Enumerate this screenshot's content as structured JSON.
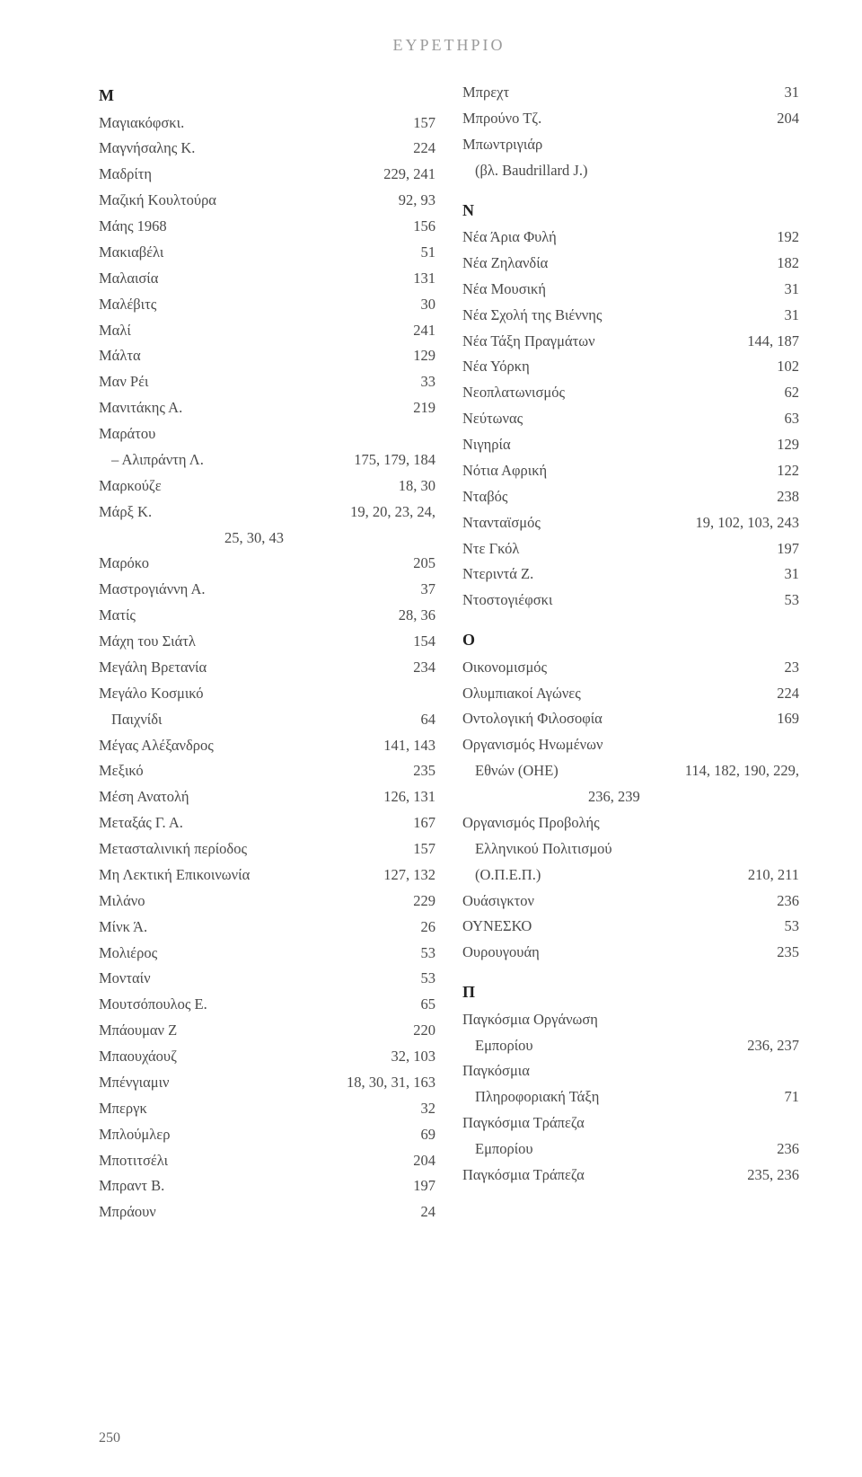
{
  "header": "ΕΥΡΕΤΗΡΙΟ",
  "page_number": "250",
  "left": {
    "letter": "Μ",
    "entries": [
      {
        "t": "Μαγιακόφσκι.",
        "p": "157"
      },
      {
        "t": "Μαγνήσαλης Κ.",
        "p": "224"
      },
      {
        "t": "Μαδρίτη",
        "p": "229, 241"
      },
      {
        "t": "Μαζική Κουλτούρα",
        "p": "92, 93"
      },
      {
        "t": "Μάης 1968",
        "p": "156"
      },
      {
        "t": "Μακιαβέλι",
        "p": "51"
      },
      {
        "t": "Μαλαισία",
        "p": "131"
      },
      {
        "t": "Μαλέβιτς",
        "p": "30"
      },
      {
        "t": "Μαλί",
        "p": "241"
      },
      {
        "t": "Μάλτα",
        "p": "129"
      },
      {
        "t": "Μαν Ρέι",
        "p": "33"
      },
      {
        "t": "Μανιτάκης Α.",
        "p": "219"
      },
      {
        "t": "Μαράτου",
        "p": ""
      },
      {
        "t": "– Αλιπράντη Λ.",
        "p": "175, 179, 184",
        "indent": true
      },
      {
        "t": "Μαρκούζε",
        "p": "18, 30"
      },
      {
        "t": "Μάρξ Κ.",
        "p": "19, 20, 23, 24,"
      },
      {
        "t": "",
        "p": "25, 30, 43",
        "cont": true
      },
      {
        "t": "Μαρόκο",
        "p": "205"
      },
      {
        "t": "Μαστρογιάννη Α.",
        "p": "37"
      },
      {
        "t": "Ματίς",
        "p": "28, 36"
      },
      {
        "t": "Μάχη του Σιάτλ",
        "p": "154"
      },
      {
        "t": "Μεγάλη Βρετανία",
        "p": "234"
      },
      {
        "t": "Μεγάλο Κοσμικό",
        "p": ""
      },
      {
        "t": "Παιχνίδι",
        "p": "64",
        "indent": true
      },
      {
        "t": "Μέγας Αλέξανδρος",
        "p": "141, 143"
      },
      {
        "t": "Μεξικό",
        "p": "235"
      },
      {
        "t": "Μέση Ανατολή",
        "p": "126, 131"
      },
      {
        "t": "Μεταξάς Γ. Α.",
        "p": "167"
      },
      {
        "t": "Μετασταλινική περίοδος",
        "p": "157"
      },
      {
        "t": "Μη Λεκτική Επικοινωνία",
        "p": "127, 132"
      },
      {
        "t": "Μιλάνο",
        "p": "229"
      },
      {
        "t": "Μίνκ Ά.",
        "p": "26"
      },
      {
        "t": "Μολιέρος",
        "p": "53"
      },
      {
        "t": "Μονταίν",
        "p": "53"
      },
      {
        "t": "Μουτσόπουλος Ε.",
        "p": "65"
      },
      {
        "t": "Μπάουμαν Ζ",
        "p": "220"
      },
      {
        "t": "Μπαουχάουζ",
        "p": "32, 103"
      },
      {
        "t": "Μπένγιαμιν",
        "p": "18, 30, 31, 163"
      },
      {
        "t": "Μπεργκ",
        "p": "32"
      },
      {
        "t": "Μπλούμλερ",
        "p": "69"
      },
      {
        "t": "Μποτιτσέλι",
        "p": "204"
      },
      {
        "t": "Μπραντ Β.",
        "p": "197"
      },
      {
        "t": "Μπράουν",
        "p": "24"
      }
    ]
  },
  "right": [
    {
      "t": "Μπρεχτ",
      "p": "31"
    },
    {
      "t": "Μπρούνο Τζ.",
      "p": "204"
    },
    {
      "t": "Μπωντριγιάρ",
      "p": ""
    },
    {
      "t": "(βλ. Baudrillard J.)",
      "p": "",
      "indent": true
    },
    {
      "letter": "Ν"
    },
    {
      "t": "Νέα Άρια Φυλή",
      "p": "192"
    },
    {
      "t": "Νέα Ζηλανδία",
      "p": "182"
    },
    {
      "t": "Νέα Μουσική",
      "p": "31"
    },
    {
      "t": "Νέα Σχολή της Βιέννης",
      "p": "31"
    },
    {
      "t": "Νέα Τάξη Πραγμάτων",
      "p": "144, 187"
    },
    {
      "t": "Νέα Υόρκη",
      "p": "102"
    },
    {
      "t": "Νεοπλατωνισμός",
      "p": "62"
    },
    {
      "t": "Νεύτωνας",
      "p": "63"
    },
    {
      "t": "Νιγηρία",
      "p": "129"
    },
    {
      "t": "Νότια Αφρική",
      "p": "122"
    },
    {
      "t": "Νταβός",
      "p": "238"
    },
    {
      "t": "Ντανταϊσμός",
      "p": "19, 102, 103, 243"
    },
    {
      "t": "Ντε Γκόλ",
      "p": "197"
    },
    {
      "t": "Ντεριντά Ζ.",
      "p": "31"
    },
    {
      "t": "Ντοστογιέφσκι",
      "p": "53"
    },
    {
      "letter": "Ο"
    },
    {
      "t": "Οικονομισμός",
      "p": "23"
    },
    {
      "t": "Ολυμπιακοί Αγώνες",
      "p": "224"
    },
    {
      "t": "Οντολογική Φιλοσοφία",
      "p": "169"
    },
    {
      "t": "Οργανισμός Ηνωμένων",
      "p": ""
    },
    {
      "t": "Εθνών (ΟΗΕ)",
      "p": "114, 182, 190, 229,",
      "indent": true
    },
    {
      "t": "",
      "p": "236, 239",
      "cont": true
    },
    {
      "t": "Οργανισμός Προβολής",
      "p": ""
    },
    {
      "t": "Ελληνικού Πολιτισμού",
      "p": "",
      "indent": true
    },
    {
      "t": "(Ο.Π.Ε.Π.)",
      "p": "210, 211",
      "indent": true
    },
    {
      "t": "Ουάσιγκτον",
      "p": "236"
    },
    {
      "t": "ΟΥΝΕΣΚΟ",
      "p": "53"
    },
    {
      "t": "Ουρουγουάη",
      "p": "235"
    },
    {
      "letter": "Π"
    },
    {
      "t": "Παγκόσμια Οργάνωση",
      "p": ""
    },
    {
      "t": "Εμπορίου",
      "p": "236, 237",
      "indent": true
    },
    {
      "t": "Παγκόσμια",
      "p": ""
    },
    {
      "t": "Πληροφοριακή Τάξη",
      "p": "71",
      "indent": true
    },
    {
      "t": "Παγκόσμια Τράπεζα",
      "p": ""
    },
    {
      "t": "Εμπορίου",
      "p": "236",
      "indent": true
    },
    {
      "t": "Παγκόσμια Τράπεζα",
      "p": "235, 236"
    }
  ],
  "style": {
    "bg": "#ffffff",
    "text_color": "#4a4a4a",
    "header_color": "#9a9a9a",
    "font_family": "Georgia, Times New Roman, serif",
    "base_fontsize": 16.5,
    "line_height": 1.75,
    "page_padding": {
      "t": 40,
      "r": 70,
      "b": 30,
      "l": 110
    }
  }
}
